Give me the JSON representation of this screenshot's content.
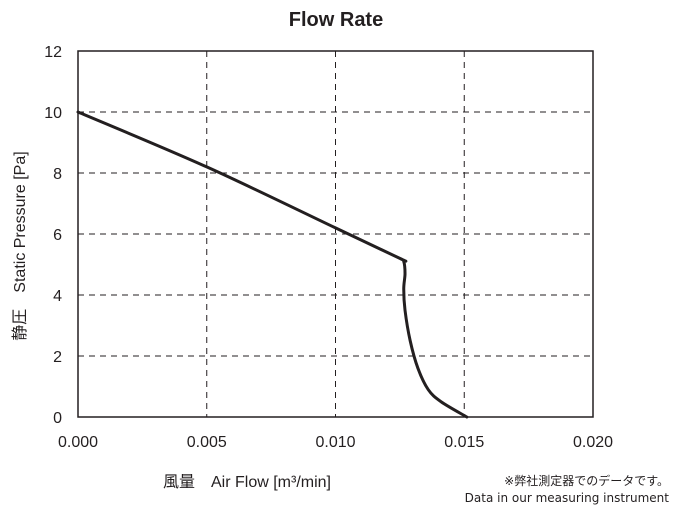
{
  "chart_data": {
    "type": "line",
    "title": "Flow Rate",
    "xlabel": "風量　Air Flow [m³/min]",
    "ylabel": "静圧　Static Pressure [Pa]",
    "xlim": [
      0,
      0.02
    ],
    "ylim": [
      0,
      12
    ],
    "x_ticks": [
      "0.000",
      "0.005",
      "0.010",
      "0.015",
      "0.020"
    ],
    "y_ticks": [
      "0",
      "2",
      "4",
      "6",
      "8",
      "10",
      "12"
    ],
    "grid": true,
    "grid_style": "dashed",
    "series": [
      {
        "x": [
          0.0,
          0.005,
          0.01,
          0.0125,
          0.01265,
          0.0127,
          0.01265,
          0.0127,
          0.0129,
          0.0132,
          0.0136,
          0.0141,
          0.0151
        ],
        "y": [
          10.0,
          8.2,
          6.2,
          5.2,
          5.1,
          4.7,
          4.2,
          3.5,
          2.5,
          1.6,
          0.9,
          0.5,
          0.0
        ]
      }
    ],
    "note_ja": "※弊社測定器でのデータです。",
    "note_en": "Data in our measuring instrument"
  }
}
